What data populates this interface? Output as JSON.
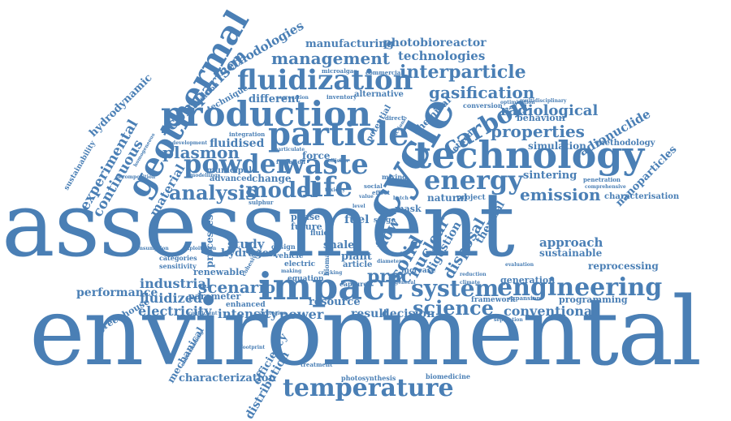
{
  "cloud": {
    "color": "#4a7fb5",
    "words": {
      "assessment": "assessment",
      "environmental": "environmental",
      "technology": "technology",
      "production": "production",
      "particle": "particle",
      "fluidization": "fluidization",
      "impact": "impact",
      "cycle": "cycle",
      "powder": "powder",
      "waste": "waste",
      "energy": "energy",
      "geothermal": "geothermal",
      "analysis": "analysis",
      "model": "model",
      "life": "life",
      "engineering": "engineering",
      "system": "system",
      "science": "science",
      "temperature": "temperature",
      "carbon": "carbon",
      "scenario": "scenario",
      "management": "management",
      "interparticle": "interparticle",
      "gasification": "gasification",
      "properties": "properties",
      "emission": "emission",
      "plasmon": "plasmon",
      "comparison": "comparison",
      "methodologies": "methodologies",
      "technologies": "technologies",
      "manufacturing": "manufacturing",
      "photobioreactor": "photobioreactor",
      "radiological": "radiological",
      "radionuclide": "radionuclide",
      "experimental": "experimental",
      "continuous": "continuous",
      "hydrodynamic": "hydrodynamic",
      "material": "material",
      "fluidised": "fluidised",
      "solid": "solid",
      "nuclear": "nuclear",
      "disposal": "disposal",
      "digestion": "digestion",
      "flow": "flow",
      "industrial": "industrial",
      "fluidized": "fluidized",
      "electricity": "electricity",
      "performance": "performance",
      "intensity": "intensity",
      "power": "power",
      "result": "result",
      "decision": "decision",
      "conventional": "conventional",
      "approach": "approach",
      "sustainable": "sustainable",
      "reprocessing": "reprocessing",
      "generation": "generation",
      "programming": "programming",
      "characterization": "characterization",
      "distribution": "distribution",
      "efficiency": "efficiency",
      "mechanical": "mechanical",
      "greenhouse": "greenhouse",
      "photosynthesis": "photosynthesis",
      "biomedicine": "biomedicine",
      "proc": "proc",
      "behaviour": "behaviour",
      "simulation": "simulation",
      "methodology": "methodology",
      "sintering": "sintering",
      "nanoparticles": "nanoparticles",
      "characterisation": "characterisation",
      "thermal": "thermal",
      "different": "different",
      "technique": "technique",
      "condition": "condition",
      "alternative": "alternative",
      "chemical": "chemical",
      "force": "force",
      "fuel": "fuel",
      "shale": "shale",
      "plant": "plant",
      "article": "article",
      "resource": "resource",
      "study": "study",
      "hydrogen": "hydrogen",
      "natural": "natural",
      "renewable": "renewable",
      "parameter": "parameter",
      "enhanced": "enhanced",
      "municipal": "municipal",
      "advanced": "advanced",
      "change": "change",
      "sustainability": "sustainability",
      "potential": "potential",
      "method": "method",
      "data": "data",
      "stage": "stage",
      "mask": "mask",
      "emissions": "emissions",
      "processes": "processes",
      "equation": "equation",
      "capture": "capture",
      "categories": "categories",
      "sensitivity": "sensitivity",
      "phase": "phase",
      "future": "future",
      "vehicle": "vehicle",
      "electric": "electric",
      "increase": "increase",
      "project": "project",
      "framework": "framework",
      "conversion": "conversion",
      "commercial": "commercial",
      "microalgae": "microalgae",
      "inventory": "inventory",
      "radiation": "radiation",
      "integration": "integration",
      "segregation": "segregation",
      "penetration": "penetration",
      "comprehensive": "comprehensive",
      "multidisciplinary": "multidisciplinary",
      "optimization": "optimization",
      "sulphur": "sulphur",
      "mixing": "mixing",
      "treatment": "treatment",
      "footprint": "footprint",
      "coefficient": "coefficient",
      "strategies": "strategies",
      "separation": "separation",
      "expansion": "expansion",
      "evaluation": "evaluation",
      "reduction": "reduction",
      "modelling": "modelling",
      "decomposition": "decomposition",
      "consumption": "consumption",
      "exploitation": "exploitation",
      "understanding": "understanding",
      "making": "making",
      "cohesive": "cohesive",
      "development": "development",
      "homogeneous": "homogeneous",
      "collision": "collision",
      "fluid": "fluid",
      "design": "design",
      "biomass": "biomass",
      "social": "social",
      "effect": "effect",
      "batch": "batch",
      "direct": "direct",
      "climate": "climate",
      "general": "general",
      "level": "level",
      "value": "value",
      "toxicity": "toxicity",
      "particulate": "particulate",
      "frictional": "frictional",
      "cracking": "cracking",
      "diameter": "diameter"
    }
  }
}
